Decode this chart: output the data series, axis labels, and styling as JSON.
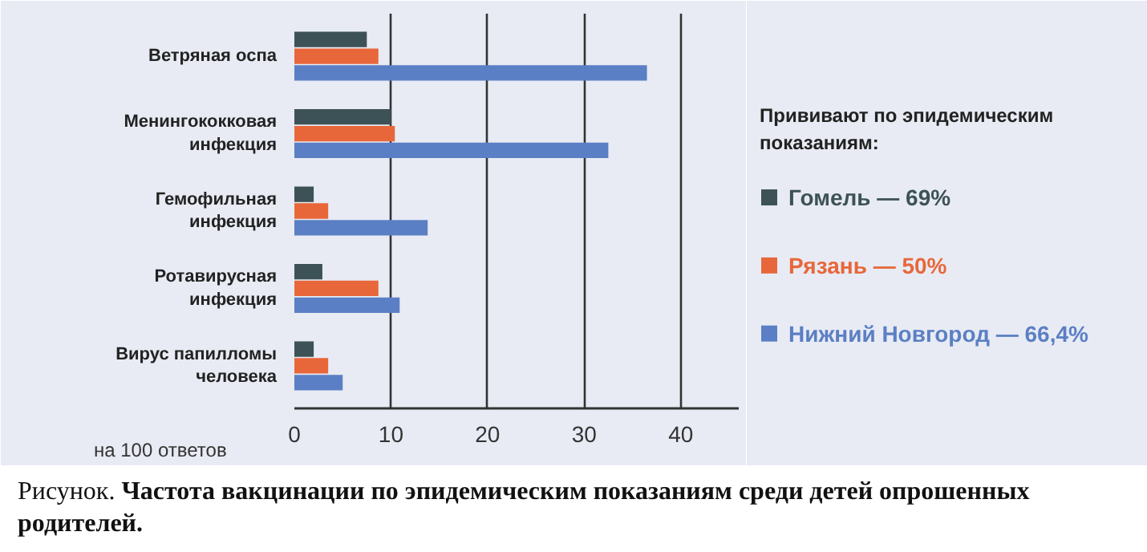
{
  "chart_data": {
    "type": "bar",
    "orientation": "horizontal",
    "categories": [
      "Ветряная оспа",
      "Менингококковая инфекция",
      "Гемофильная инфекция",
      "Ротавирусная инфекция",
      "Вирус папилломы человека"
    ],
    "series": [
      {
        "name": "Гомель — 69%",
        "color": "#3d5256",
        "values": [
          7.5,
          10,
          2,
          2.9,
          2
        ]
      },
      {
        "name": "Рязань — 50%",
        "color": "#e8673a",
        "values": [
          8.7,
          10.4,
          3.5,
          8.7,
          3.5
        ]
      },
      {
        "name": "Нижний Новгород — 66,4%",
        "color": "#5b7fc4",
        "values": [
          36.5,
          32.5,
          13.8,
          10.9,
          5
        ]
      }
    ],
    "xlabel": "на 100 ответов",
    "xlim": [
      0,
      46
    ],
    "xticks": [
      0,
      10,
      20,
      30,
      40
    ],
    "grid": "x",
    "legend": "right",
    "legend_title": "Прививают по эпидемическим показаниям:",
    "annotations": [
      "Рисунок. Частота вакцинации по эпидемическим показаниям среди детей опрошенных родителей."
    ]
  }
}
